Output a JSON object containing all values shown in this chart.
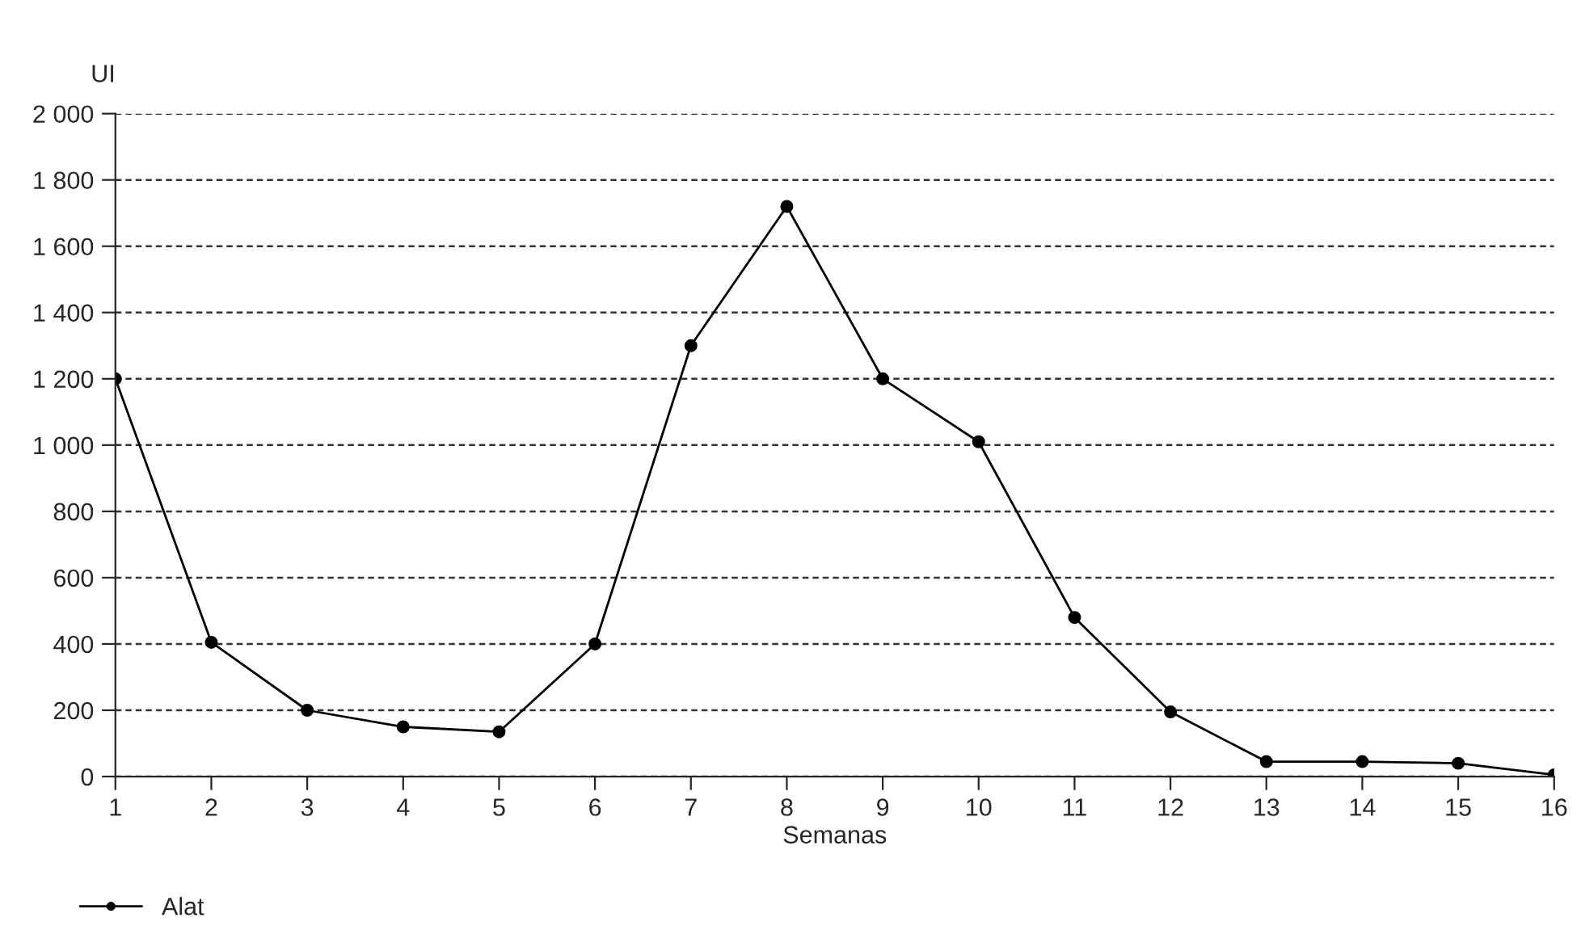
{
  "chart_data": {
    "type": "line",
    "xlabel": "Semanas",
    "ylabel": "UI",
    "categories": [
      "1",
      "2",
      "3",
      "4",
      "5",
      "6",
      "7",
      "8",
      "9",
      "10",
      "11",
      "12",
      "13",
      "14",
      "15",
      "16"
    ],
    "series": [
      {
        "name": "Alat",
        "color": "#000000",
        "values": [
          1200,
          405,
          200,
          150,
          135,
          400,
          1300,
          1720,
          1200,
          1010,
          480,
          195,
          45,
          45,
          40,
          5
        ]
      }
    ],
    "ylim": [
      0,
      2000
    ],
    "yticks": [
      0,
      200,
      400,
      600,
      800,
      {
        "value": 1000,
        "label": "1 000"
      },
      {
        "value": 1200,
        "label": "1 200"
      },
      {
        "value": 1400,
        "label": "1 400"
      },
      {
        "value": 1600,
        "label": "1 600"
      },
      {
        "value": 1800,
        "label": "1 800"
      },
      {
        "value": 2000,
        "label": "2 000"
      }
    ],
    "grid": "y",
    "legend": "bottom left",
    "marker": "circle",
    "line_style": "solid"
  }
}
